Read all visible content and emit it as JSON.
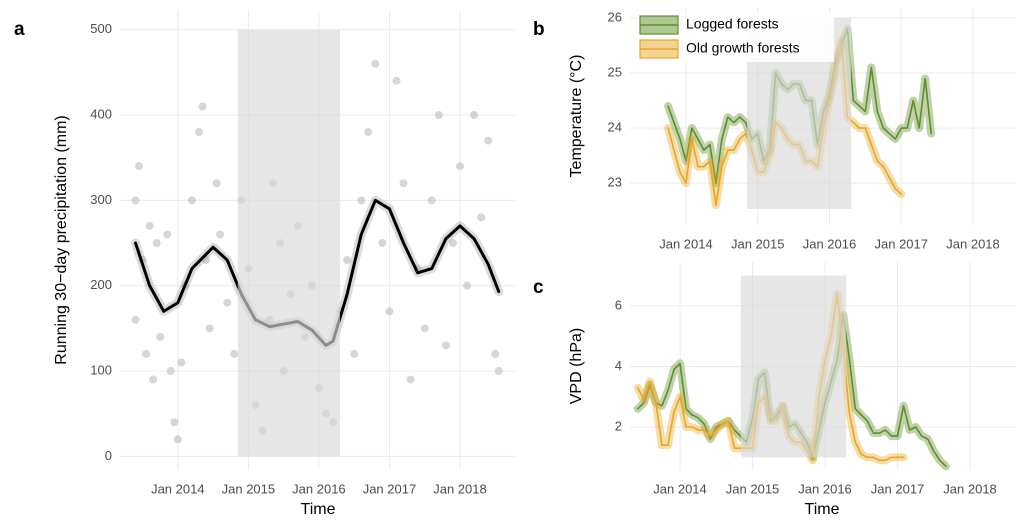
{
  "chart_data": [
    {
      "type": "scatter",
      "label": "a",
      "x_label": "Time",
      "y_label": "Running 30−day precipitation (mm)",
      "x": [
        2013.4,
        2013.4,
        2013.45,
        2013.5,
        2013.55,
        2013.6,
        2013.65,
        2013.7,
        2013.75,
        2013.85,
        2013.9,
        2013.95,
        2014.0,
        2014.05,
        2014.1,
        2014.2,
        2014.3,
        2014.35,
        2014.4,
        2014.45,
        2014.55,
        2014.6,
        2014.7,
        2014.8,
        2014.9,
        2015.0,
        2015.1,
        2015.2,
        2015.3,
        2015.35,
        2015.45,
        2015.5,
        2015.6,
        2015.7,
        2015.8,
        2015.9,
        2016.0,
        2016.1,
        2016.2,
        2016.3,
        2016.4,
        2016.5,
        2016.6,
        2016.7,
        2016.8,
        2016.9,
        2017.0,
        2017.1,
        2017.2,
        2017.3,
        2017.4,
        2017.5,
        2017.6,
        2017.7,
        2017.8,
        2017.9,
        2018.0,
        2018.1,
        2018.2,
        2018.3,
        2018.4,
        2018.5,
        2018.55
      ],
      "values": [
        300,
        160,
        340,
        230,
        120,
        270,
        90,
        250,
        140,
        260,
        100,
        40,
        20,
        110,
        200,
        300,
        380,
        410,
        230,
        150,
        320,
        260,
        180,
        120,
        300,
        220,
        60,
        30,
        160,
        320,
        250,
        100,
        190,
        270,
        140,
        200,
        80,
        50,
        40,
        170,
        230,
        120,
        300,
        380,
        460,
        250,
        170,
        440,
        320,
        90,
        220,
        150,
        300,
        400,
        130,
        250,
        340,
        200,
        400,
        280,
        370,
        120,
        100
      ],
      "color": "#b5b5b5",
      "trend": {
        "x": [
          2013.4,
          2013.6,
          2013.8,
          2014.0,
          2014.2,
          2014.5,
          2014.7,
          2014.9,
          2015.1,
          2015.3,
          2015.5,
          2015.7,
          2015.9,
          2016.1,
          2016.2,
          2016.4,
          2016.6,
          2016.8,
          2017.0,
          2017.2,
          2017.4,
          2017.6,
          2017.8,
          2018.0,
          2018.2,
          2018.4,
          2018.55
        ],
        "values": [
          250,
          200,
          170,
          180,
          220,
          245,
          230,
          190,
          160,
          152,
          155,
          158,
          148,
          130,
          135,
          190,
          260,
          300,
          290,
          250,
          215,
          220,
          255,
          270,
          255,
          225,
          193
        ],
        "color": "#000000"
      },
      "shade": {
        "xlim": [
          2014.85,
          2016.3
        ],
        "ylim": [
          0,
          500
        ]
      },
      "xlim": [
        2013.18,
        2018.78
      ],
      "ylim": [
        -16,
        523
      ],
      "xticks": [
        {
          "value": 2014,
          "label": "Jan 2014"
        },
        {
          "value": 2015,
          "label": "Jan 2015"
        },
        {
          "value": 2016,
          "label": "Jan 2016"
        },
        {
          "value": 2017,
          "label": "Jan 2017"
        },
        {
          "value": 2018,
          "label": "Jan 2018"
        }
      ],
      "yticks": [
        0,
        100,
        200,
        300,
        400,
        500
      ],
      "grid": true
    },
    {
      "type": "line",
      "label": "b",
      "y_label": "Temperature (°C)",
      "legend": "top-left",
      "x": [
        2013.75,
        2013.833,
        2013.917,
        2014,
        2014.083,
        2014.167,
        2014.25,
        2014.333,
        2014.417,
        2014.5,
        2014.583,
        2014.667,
        2014.75,
        2014.833,
        2014.917,
        2015,
        2015.083,
        2015.167,
        2015.25,
        2015.333,
        2015.417,
        2015.5,
        2015.583,
        2015.667,
        2015.75,
        2015.833,
        2015.917,
        2016,
        2016.083,
        2016.167,
        2016.25,
        2016.333,
        2016.417,
        2016.5,
        2016.583,
        2016.667,
        2016.75,
        2016.833,
        2016.917,
        2017,
        2017.083,
        2017.167,
        2017.25,
        2017.333,
        2017.417
      ],
      "series": [
        {
          "name": "Logged forests",
          "color": "#5f8f2a",
          "values": [
            24.4,
            24.1,
            23.8,
            23.4,
            24.0,
            23.8,
            23.6,
            23.7,
            23.0,
            23.8,
            24.2,
            24.1,
            24.2,
            24.1,
            23.8,
            23.9,
            23.4,
            23.6,
            25.0,
            24.8,
            24.7,
            24.8,
            24.8,
            24.5,
            24.5,
            23.7,
            24.3,
            24.6,
            25.2,
            25.5,
            25.8,
            24.5,
            24.4,
            24.3,
            25.1,
            24.3,
            24.0,
            23.9,
            23.8,
            24.0,
            24.0,
            24.5,
            24.0,
            24.9,
            23.9
          ]
        },
        {
          "name": "Old growth forests",
          "color": "#e8a723",
          "values": [
            24.0,
            23.6,
            23.2,
            23.0,
            23.8,
            23.3,
            23.3,
            23.4,
            22.6,
            23.3,
            23.6,
            23.6,
            23.8,
            23.9,
            23.6,
            23.2,
            23.2,
            23.5,
            24.1,
            24.0,
            23.8,
            23.7,
            23.7,
            23.4,
            23.4,
            23.3,
            24.0,
            24.5,
            25.0,
            25.6,
            24.2,
            24.1,
            24.0,
            24.0,
            23.7,
            23.4,
            23.3,
            23.1,
            22.9,
            22.8,
            null,
            null,
            null,
            null,
            null
          ]
        }
      ],
      "shade": {
        "xlim": [
          2014.85,
          2016.3
        ],
        "ylim": [
          22.53,
          26.0
        ]
      },
      "xlim": [
        2013.22,
        2018.585
      ],
      "ylim": [
        22.24,
        26.18
      ],
      "xticks": [
        {
          "value": 2014,
          "label": "Jan 2014"
        },
        {
          "value": 2015,
          "label": "Jan 2015"
        },
        {
          "value": 2016,
          "label": "Jan 2016"
        },
        {
          "value": 2017,
          "label": "Jan 2017"
        },
        {
          "value": 2018,
          "label": "Jan 2018"
        }
      ],
      "yticks": [
        23,
        24,
        25,
        26
      ],
      "grid": true
    },
    {
      "type": "line",
      "label": "c",
      "x_label": "Time",
      "y_label": "VPD (hPa)",
      "x": [
        2013.417,
        2013.5,
        2013.583,
        2013.667,
        2013.75,
        2013.833,
        2013.917,
        2014,
        2014.083,
        2014.167,
        2014.25,
        2014.333,
        2014.417,
        2014.5,
        2014.583,
        2014.667,
        2014.75,
        2014.833,
        2014.917,
        2015,
        2015.083,
        2015.167,
        2015.25,
        2015.333,
        2015.417,
        2015.5,
        2015.583,
        2015.667,
        2015.75,
        2015.833,
        2015.917,
        2016,
        2016.083,
        2016.167,
        2016.25,
        2016.333,
        2016.417,
        2016.5,
        2016.583,
        2016.667,
        2016.75,
        2016.833,
        2016.917,
        2017,
        2017.083,
        2017.167,
        2017.25,
        2017.333,
        2017.417,
        2017.5,
        2017.583,
        2017.667
      ],
      "series": [
        {
          "color": "#5f8f2a",
          "values": [
            2.6,
            2.8,
            3.4,
            2.8,
            2.7,
            3.2,
            3.9,
            4.1,
            2.6,
            2.4,
            2.3,
            2.1,
            1.6,
            2.0,
            2.1,
            2.2,
            1.9,
            1.7,
            1.5,
            2.3,
            3.6,
            3.8,
            2.2,
            2.4,
            2.7,
            2.0,
            2.1,
            1.8,
            1.5,
            1.0,
            1.9,
            2.8,
            3.5,
            4.2,
            5.7,
            4.3,
            2.6,
            2.4,
            2.2,
            1.8,
            1.8,
            1.9,
            1.7,
            1.7,
            2.7,
            1.9,
            2.0,
            1.7,
            1.6,
            1.2,
            0.9,
            0.7
          ]
        },
        {
          "color": "#e8a723",
          "values": [
            3.3,
            2.9,
            3.5,
            2.8,
            1.4,
            1.4,
            2.5,
            3.0,
            2.0,
            2.0,
            1.9,
            1.9,
            1.7,
            1.9,
            2.1,
            2.2,
            1.3,
            1.3,
            1.3,
            1.3,
            2.8,
            3.0,
            2.3,
            2.2,
            2.7,
            1.7,
            1.5,
            1.5,
            1.2,
            0.9,
            3.0,
            4.2,
            5.0,
            6.4,
            4.6,
            2.5,
            1.5,
            1.1,
            1.0,
            1.0,
            0.9,
            0.9,
            1.0,
            1.0,
            1.0,
            null,
            null,
            null,
            null,
            null,
            null,
            null
          ]
        }
      ],
      "shade": {
        "xlim": [
          2014.84,
          2016.29
        ],
        "ylim": [
          1.0,
          7.0
        ]
      },
      "xlim": [
        2013.31,
        2018.62
      ],
      "ylim": [
        0.58,
        7.45
      ],
      "xticks": [
        {
          "value": 2014,
          "label": "Jan 2014"
        },
        {
          "value": 2015,
          "label": "Jan 2015"
        },
        {
          "value": 2016,
          "label": "Jan 2016"
        },
        {
          "value": 2017,
          "label": "Jan 2017"
        },
        {
          "value": 2018,
          "label": "Jan 2018"
        }
      ],
      "yticks": [
        2,
        4,
        6
      ],
      "grid": true
    }
  ]
}
